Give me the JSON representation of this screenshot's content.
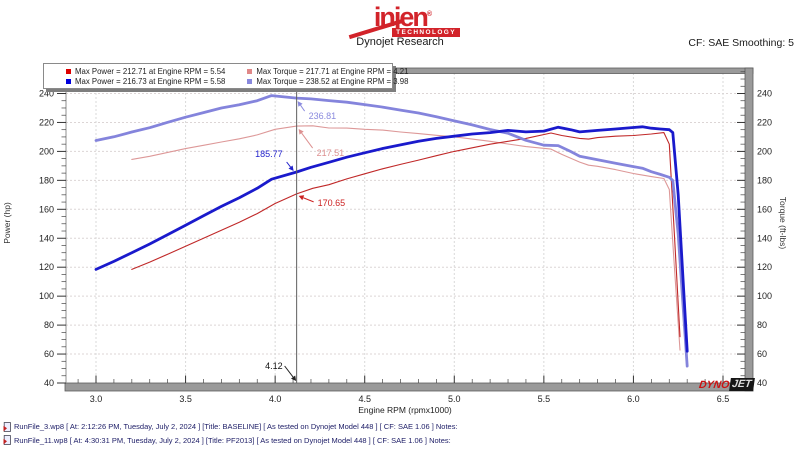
{
  "header": {
    "logo": {
      "brand": "injen",
      "registered": "®",
      "sub": "TECHNOLOGY"
    },
    "title": "Dynojet Research",
    "smoothing": "CF: SAE Smoothing: 5"
  },
  "legend": {
    "items": [
      {
        "label": "Max Power = 212.71 at Engine RPM = 5.54",
        "color": "#dd0000"
      },
      {
        "label": "Max Torque = 217.71 at Engine RPM = 4.21",
        "color": "#e08888"
      },
      {
        "label": "Max Power = 216.73 at Engine RPM = 5.58",
        "color": "#0000dd"
      },
      {
        "label": "Max Torque = 238.52 at Engine RPM = 3.98",
        "color": "#8888dd"
      }
    ]
  },
  "chart_data": {
    "type": "line",
    "title": "Dynojet Research",
    "xlabel": "Engine RPM (rpmx1000)",
    "ylabel_left": "Power (hp)",
    "ylabel_right": "Torque (ft-lbs)",
    "xlim": [
      2.82,
      6.62
    ],
    "ylim": [
      40,
      257
    ],
    "x_ticks": [
      3.0,
      3.5,
      4.0,
      4.5,
      5.0,
      5.5,
      6.0,
      6.5
    ],
    "y_ticks": [
      40,
      60,
      80,
      100,
      120,
      140,
      160,
      180,
      200,
      220,
      240
    ],
    "grid": true,
    "legend_position": "top-left",
    "cursor": {
      "rpm": 4.12,
      "label": "4.12"
    },
    "annotations": [
      {
        "label": "236.81",
        "rpm": 4.12,
        "value": 236.81,
        "color": "#8a8ade",
        "series": "pf2013-torque"
      },
      {
        "label": "217.51",
        "rpm": 4.12,
        "value": 217.51,
        "color": "#dd9090",
        "series": "baseline-torque"
      },
      {
        "label": "185.77",
        "rpm": 4.12,
        "value": 185.77,
        "color": "#2222cc",
        "series": "pf2013-power"
      },
      {
        "label": "170.65",
        "rpm": 4.12,
        "value": 170.65,
        "color": "#cc2222",
        "series": "baseline-power"
      }
    ],
    "series": [
      {
        "name": "baseline-torque",
        "run": "BASELINE",
        "quantity": "Torque",
        "unit": "ft-lbs",
        "color": "#dd9898",
        "width": 1.1,
        "points": [
          [
            3.2,
            194.5
          ],
          [
            3.3,
            196.6
          ],
          [
            3.4,
            199.3
          ],
          [
            3.5,
            201.9
          ],
          [
            3.6,
            204.2
          ],
          [
            3.7,
            206.5
          ],
          [
            3.8,
            208.7
          ],
          [
            3.9,
            211.4
          ],
          [
            4.0,
            215.3
          ],
          [
            4.12,
            217.51
          ],
          [
            4.21,
            217.71
          ],
          [
            4.3,
            216.2
          ],
          [
            4.4,
            216.1
          ],
          [
            4.5,
            215.3
          ],
          [
            4.6,
            214.7
          ],
          [
            4.7,
            213.4
          ],
          [
            4.8,
            212.3
          ],
          [
            4.9,
            211.1
          ],
          [
            5.0,
            210.1
          ],
          [
            5.1,
            208.5
          ],
          [
            5.2,
            207.0
          ],
          [
            5.3,
            205.1
          ],
          [
            5.4,
            203.3
          ],
          [
            5.54,
            201.6
          ],
          [
            5.6,
            197.9
          ],
          [
            5.7,
            192.6
          ],
          [
            5.75,
            190.5
          ],
          [
            5.8,
            189.7
          ],
          [
            5.9,
            187.4
          ],
          [
            6.0,
            184.7
          ],
          [
            6.1,
            182.6
          ],
          [
            6.17,
            181.3
          ],
          [
            6.2,
            173.7
          ],
          [
            6.23,
            118.0
          ],
          [
            6.26,
            62.7
          ]
        ]
      },
      {
        "name": "baseline-power",
        "run": "BASELINE",
        "quantity": "Power",
        "unit": "hp",
        "color": "#c02828",
        "width": 1.1,
        "points": [
          [
            3.2,
            118.5
          ],
          [
            3.3,
            123.5
          ],
          [
            3.4,
            129
          ],
          [
            3.5,
            134.5
          ],
          [
            3.6,
            140
          ],
          [
            3.7,
            145.5
          ],
          [
            3.8,
            151
          ],
          [
            3.9,
            157
          ],
          [
            4.0,
            164
          ],
          [
            4.12,
            170.65
          ],
          [
            4.21,
            174.5
          ],
          [
            4.3,
            177
          ],
          [
            4.4,
            181
          ],
          [
            4.5,
            184.5
          ],
          [
            4.6,
            188
          ],
          [
            4.7,
            191
          ],
          [
            4.8,
            194
          ],
          [
            4.9,
            197
          ],
          [
            5.0,
            200
          ],
          [
            5.1,
            202.5
          ],
          [
            5.2,
            205
          ],
          [
            5.3,
            207
          ],
          [
            5.4,
            209
          ],
          [
            5.54,
            212.71
          ],
          [
            5.6,
            211
          ],
          [
            5.7,
            209
          ],
          [
            5.75,
            208.5
          ],
          [
            5.8,
            209.5
          ],
          [
            5.9,
            210.5
          ],
          [
            6.0,
            211
          ],
          [
            6.1,
            212
          ],
          [
            6.17,
            213
          ],
          [
            6.2,
            205
          ],
          [
            6.23,
            140
          ],
          [
            6.26,
            72
          ]
        ]
      },
      {
        "name": "pf2013-torque",
        "run": "PF2013",
        "quantity": "Torque",
        "unit": "ft-lbs",
        "color": "#8484dc",
        "width": 2.8,
        "points": [
          [
            3.0,
            207.5
          ],
          [
            3.1,
            210.1
          ],
          [
            3.2,
            213.4
          ],
          [
            3.3,
            216.4
          ],
          [
            3.4,
            220.1
          ],
          [
            3.5,
            223.6
          ],
          [
            3.6,
            226.8
          ],
          [
            3.7,
            230.0
          ],
          [
            3.8,
            232.2
          ],
          [
            3.9,
            235.0
          ],
          [
            3.98,
            238.52
          ],
          [
            4.12,
            236.81
          ],
          [
            4.2,
            236.3
          ],
          [
            4.3,
            235.1
          ],
          [
            4.4,
            234.0
          ],
          [
            4.5,
            232.3
          ],
          [
            4.6,
            230.6
          ],
          [
            4.7,
            228.5
          ],
          [
            4.8,
            226.5
          ],
          [
            4.9,
            224.0
          ],
          [
            5.0,
            221.1
          ],
          [
            5.1,
            218.3
          ],
          [
            5.2,
            215.1
          ],
          [
            5.3,
            212.6
          ],
          [
            5.4,
            207.7
          ],
          [
            5.5,
            204.3
          ],
          [
            5.58,
            204.0
          ],
          [
            5.65,
            199.9
          ],
          [
            5.7,
            196.7
          ],
          [
            5.8,
            194.3
          ],
          [
            5.9,
            191.8
          ],
          [
            6.0,
            189.5
          ],
          [
            6.05,
            188.4
          ],
          [
            6.1,
            186.0
          ],
          [
            6.15,
            184.1
          ],
          [
            6.2,
            182.1
          ],
          [
            6.22,
            179.9
          ],
          [
            6.25,
            142.9
          ],
          [
            6.28,
            87.8
          ],
          [
            6.3,
            51.7
          ]
        ]
      },
      {
        "name": "pf2013-power",
        "run": "PF2013",
        "quantity": "Power",
        "unit": "hp",
        "color": "#1a1acc",
        "width": 2.8,
        "points": [
          [
            3.0,
            118.5
          ],
          [
            3.1,
            124
          ],
          [
            3.2,
            130
          ],
          [
            3.3,
            136
          ],
          [
            3.4,
            142.5
          ],
          [
            3.5,
            149
          ],
          [
            3.6,
            155.5
          ],
          [
            3.7,
            162
          ],
          [
            3.8,
            168
          ],
          [
            3.9,
            174.5
          ],
          [
            3.98,
            180.8
          ],
          [
            4.12,
            185.77
          ],
          [
            4.2,
            189
          ],
          [
            4.3,
            192.5
          ],
          [
            4.4,
            196
          ],
          [
            4.5,
            199
          ],
          [
            4.6,
            202
          ],
          [
            4.7,
            204.5
          ],
          [
            4.8,
            207
          ],
          [
            4.9,
            209
          ],
          [
            5.0,
            210.5
          ],
          [
            5.1,
            212
          ],
          [
            5.2,
            213
          ],
          [
            5.3,
            214.5
          ],
          [
            5.4,
            213.5
          ],
          [
            5.5,
            214
          ],
          [
            5.58,
            216.73
          ],
          [
            5.65,
            215
          ],
          [
            5.7,
            213.5
          ],
          [
            5.8,
            214.5
          ],
          [
            5.9,
            215.5
          ],
          [
            6.0,
            216.5
          ],
          [
            6.05,
            217
          ],
          [
            6.1,
            216
          ],
          [
            6.15,
            215.5
          ],
          [
            6.2,
            215
          ],
          [
            6.22,
            213
          ],
          [
            6.25,
            170
          ],
          [
            6.28,
            105
          ],
          [
            6.3,
            62
          ]
        ]
      }
    ]
  },
  "watermark": {
    "dyno": "DYNO",
    "jet": "JET"
  },
  "footer": {
    "runs": [
      {
        "text": "RunFile_3.wp8 [ At: 2:12:26 PM, Tuesday, July 2, 2024 ] [Title: BASELINE]  [ As tested on Dynojet Model 448 ] [ CF: SAE 1.06 ] Notes:"
      },
      {
        "text": "RunFile_11.wp8 [ At: 4:30:31 PM, Tuesday, July 2, 2024 ] [Title: PF2013]  [ As tested on Dynojet Model 448 ] [ CF: SAE 1.06 ] Notes:"
      }
    ]
  }
}
